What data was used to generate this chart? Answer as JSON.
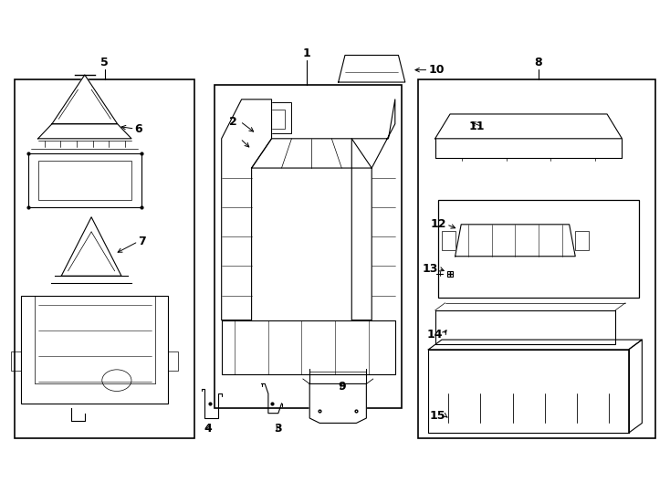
{
  "title": "",
  "bg_color": "#ffffff",
  "line_color": "#000000",
  "label_color": "#000000",
  "fig_width": 7.34,
  "fig_height": 5.4,
  "dpi": 100
}
